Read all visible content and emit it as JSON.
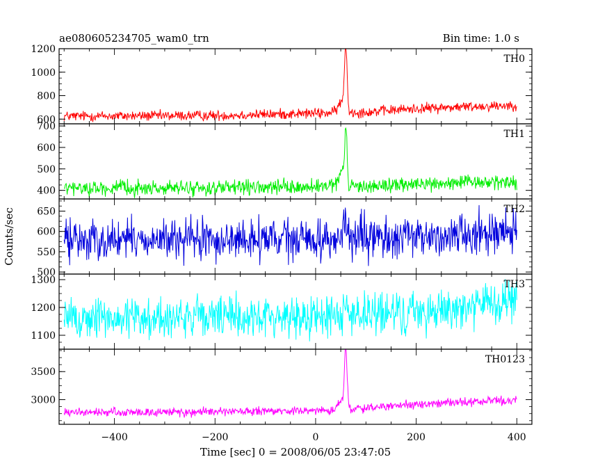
{
  "header": {
    "title": "ae080605234705_wam0_trn",
    "bin_time": "Bin time: 1.0 s"
  },
  "chart_data": {
    "type": "line",
    "xlabel": "Time [sec] 0 = 2008/06/05 23:47:05",
    "ylabel": "Counts/sec",
    "xlim": [
      -510,
      430
    ],
    "x_ticks": [
      -400,
      -200,
      0,
      200,
      400
    ],
    "x_tick_labels": [
      "−400",
      "−200",
      "0",
      "200",
      "400"
    ],
    "data_x_range": [
      -500,
      400
    ],
    "panels": [
      {
        "name": "TH0",
        "color": "#ff0000",
        "ylim": [
          560,
          1200
        ],
        "ticks": [
          600,
          800,
          1000,
          1200
        ],
        "tick_labels": [
          "600",
          "800",
          "1000",
          "1200"
        ],
        "baseline": [
          [
            -500,
            625
          ],
          [
            -200,
            630
          ],
          [
            0,
            650
          ],
          [
            100,
            660
          ],
          [
            200,
            690
          ],
          [
            300,
            705
          ],
          [
            400,
            720
          ]
        ],
        "noise": 22,
        "peaks": [
          {
            "x": 60,
            "height": 540,
            "width": 2.5
          },
          {
            "x": 52,
            "height": 90,
            "width": 7
          }
        ]
      },
      {
        "name": "TH1",
        "color": "#00ee00",
        "ylim": [
          360,
          710
        ],
        "ticks": [
          400,
          500,
          600,
          700
        ],
        "tick_labels": [
          "400",
          "500",
          "600",
          "700"
        ],
        "baseline": [
          [
            -500,
            410
          ],
          [
            -200,
            410
          ],
          [
            0,
            415
          ],
          [
            100,
            420
          ],
          [
            300,
            435
          ],
          [
            400,
            440
          ]
        ],
        "noise": 17,
        "peaks": [
          {
            "x": 60,
            "height": 260,
            "width": 2.2
          },
          {
            "x": 52,
            "height": 60,
            "width": 7
          }
        ]
      },
      {
        "name": "TH2",
        "color": "#0000dd",
        "ylim": [
          495,
          680
        ],
        "ticks": [
          500,
          550,
          600,
          650
        ],
        "tick_labels": [
          "500",
          "550",
          "600",
          "650"
        ],
        "baseline": [
          [
            -500,
            580
          ],
          [
            -200,
            578
          ],
          [
            0,
            580
          ],
          [
            200,
            585
          ],
          [
            300,
            595
          ],
          [
            400,
            605
          ]
        ],
        "noise": 25,
        "peaks": [
          {
            "x": 58,
            "height": 40,
            "width": 4
          }
        ]
      },
      {
        "name": "TH3",
        "color": "#00ffff",
        "ylim": [
          1050,
          1320
        ],
        "ticks": [
          1100,
          1200,
          1300
        ],
        "tick_labels": [
          "1100",
          "1200",
          "1300"
        ],
        "baseline": [
          [
            -500,
            1160
          ],
          [
            -200,
            1165
          ],
          [
            0,
            1168
          ],
          [
            200,
            1180
          ],
          [
            300,
            1205
          ],
          [
            400,
            1220
          ]
        ],
        "noise": 38,
        "peaks": [
          {
            "x": 60,
            "height": 50,
            "width": 4
          }
        ]
      },
      {
        "name": "TH0123",
        "color": "#ff00ff",
        "ylim": [
          2560,
          3900
        ],
        "ticks": [
          3000,
          3500
        ],
        "tick_labels": [
          "3000",
          "3500"
        ],
        "baseline": [
          [
            -500,
            2770
          ],
          [
            -200,
            2780
          ],
          [
            0,
            2800
          ],
          [
            100,
            2850
          ],
          [
            200,
            2910
          ],
          [
            300,
            2960
          ],
          [
            400,
            2990
          ]
        ],
        "noise": 38,
        "peaks": [
          {
            "x": 60,
            "height": 1050,
            "width": 2.5
          },
          {
            "x": 52,
            "height": 160,
            "width": 7
          }
        ]
      }
    ]
  }
}
